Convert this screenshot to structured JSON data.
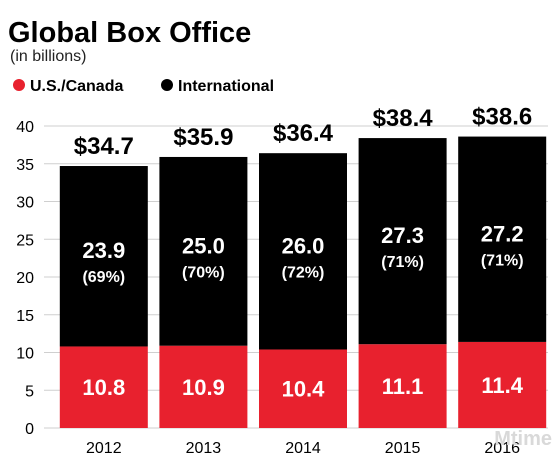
{
  "chart_data": {
    "type": "bar",
    "stacked": true,
    "title": "Global Box Office",
    "subtitle": "(in billions)",
    "categories": [
      "2012",
      "2013",
      "2014",
      "2015",
      "2016"
    ],
    "series": [
      {
        "name": "U.S./Canada",
        "color": "#e8212e",
        "values": [
          10.8,
          10.9,
          10.4,
          11.1,
          11.4
        ],
        "labels": [
          "10.8",
          "10.9",
          "10.4",
          "11.1",
          "11.4"
        ]
      },
      {
        "name": "International",
        "color": "#000000",
        "values": [
          23.9,
          25.0,
          26.0,
          27.3,
          27.2
        ],
        "labels": [
          "23.9",
          "25.0",
          "26.0",
          "27.3",
          "27.2"
        ],
        "share_labels": [
          "(69%)",
          "(70%)",
          "(72%)",
          "(71%)",
          "(71%)"
        ]
      }
    ],
    "totals": [
      34.7,
      35.9,
      36.4,
      38.4,
      38.6
    ],
    "total_labels": [
      "$34.7",
      "$35.9",
      "$36.4",
      "$38.4",
      "$38.6"
    ],
    "ylim": [
      0,
      40
    ],
    "yticks": [
      0,
      5,
      10,
      15,
      20,
      25,
      30,
      35,
      40
    ],
    "grid": true,
    "legend_position": "top-left"
  },
  "watermark": "Mtime"
}
